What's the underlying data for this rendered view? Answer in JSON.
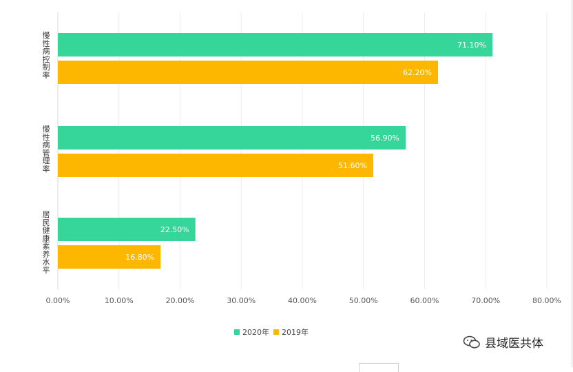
{
  "chart_data": {
    "type": "bar",
    "orientation": "horizontal",
    "categories": [
      "慢性病控制率",
      "慢性病管理率",
      "居民健康素养水平"
    ],
    "series": [
      {
        "name": "2020年",
        "color": "#36d69a",
        "values": [
          71.1,
          56.9,
          22.5
        ],
        "labels": [
          "71.10%",
          "56.90%",
          "22.50%"
        ]
      },
      {
        "name": "2019年",
        "color": "#fdb700",
        "values": [
          62.2,
          51.6,
          16.8
        ],
        "labels": [
          "62.20%",
          "51.60%",
          "16.80%"
        ]
      }
    ],
    "xlim": [
      0,
      80
    ],
    "xticks": [
      "0.00%",
      "10.00%",
      "20.00%",
      "30.00%",
      "40.00%",
      "50.00%",
      "60.00%",
      "70.00%",
      "80.00%"
    ],
    "grid": true,
    "legend": "bottom-center"
  },
  "legend": {
    "items": [
      {
        "label": "2020年",
        "color": "#36d69a"
      },
      {
        "label": "2019年",
        "color": "#fdb700"
      }
    ]
  },
  "watermark": {
    "text": "县域医共体",
    "icon": "wechat-icon"
  }
}
